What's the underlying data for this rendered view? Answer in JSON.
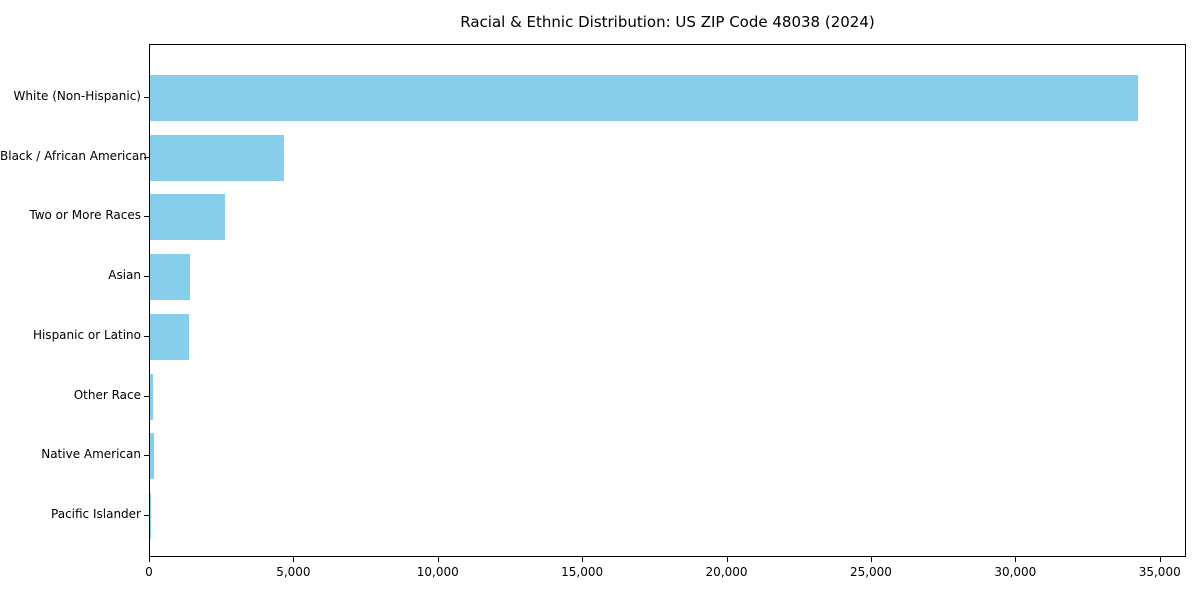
{
  "chart_data": {
    "type": "bar",
    "orientation": "horizontal",
    "title": "Racial & Ethnic Distribution: US ZIP Code 48038 (2024)",
    "categories": [
      "White (Non-Hispanic)",
      "Black / African American",
      "Two or More Races",
      "Asian",
      "Hispanic or Latino",
      "Other Race",
      "Native American",
      "Pacific Islander"
    ],
    "values": [
      34200,
      4650,
      2610,
      1380,
      1340,
      95,
      130,
      10
    ],
    "xlabel": "",
    "ylabel": "",
    "xlim": [
      0,
      35910
    ],
    "xticks": [
      0,
      5000,
      10000,
      15000,
      20000,
      25000,
      30000,
      35000
    ],
    "xtick_labels": [
      "0",
      "5,000",
      "10,000",
      "15,000",
      "20,000",
      "25,000",
      "30,000",
      "35,000"
    ],
    "bar_color": "#87CEEB",
    "background_color": "#FFFFFF",
    "text_color": "#000000",
    "grid": false,
    "legend_position": "none"
  }
}
